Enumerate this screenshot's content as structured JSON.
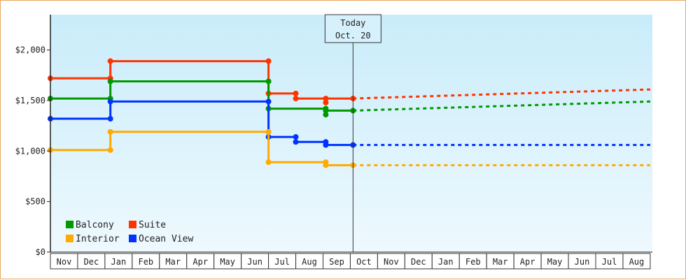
{
  "chart_data": {
    "type": "line",
    "step": true,
    "x_categories": [
      "Nov",
      "Dec",
      "Jan",
      "Feb",
      "Mar",
      "Apr",
      "May",
      "Jun",
      "Jul",
      "Aug",
      "Sep",
      "Oct",
      "Nov",
      "Dec",
      "Jan",
      "Feb",
      "Mar",
      "Apr",
      "May",
      "Jun",
      "Jul",
      "Aug"
    ],
    "y_ticks": [
      "$0",
      "$500",
      "$1,000",
      "$1,500",
      "$2,000"
    ],
    "y_tick_values": [
      0,
      500,
      1000,
      1500,
      2000
    ],
    "ylim": [
      0,
      2350
    ],
    "grid": false,
    "legend_position": "bottom-left",
    "today": {
      "line1": "Today",
      "line2": "Oct. 20",
      "month_index": 11.1
    },
    "series": [
      {
        "name": "Suite",
        "color": "#ff3300",
        "points": [
          {
            "month_index": 0,
            "value": 1720
          },
          {
            "month_index": 2.2,
            "value": 1720
          },
          {
            "month_index": 2.2,
            "value": 1890
          },
          {
            "month_index": 8,
            "value": 1890
          },
          {
            "month_index": 8,
            "value": 1570
          },
          {
            "month_index": 9,
            "value": 1570
          },
          {
            "month_index": 9,
            "value": 1520
          },
          {
            "month_index": 10.1,
            "value": 1520
          },
          {
            "month_index": 10.1,
            "value": 1480
          },
          {
            "month_index": 10.1,
            "value": 1520
          },
          {
            "month_index": 11.1,
            "value": 1520
          }
        ],
        "forecast": [
          {
            "month_index": 11.1,
            "value": 1520
          },
          {
            "month_index": 22,
            "value": 1610
          }
        ]
      },
      {
        "name": "Balcony",
        "color": "#009900",
        "points": [
          {
            "month_index": 0,
            "value": 1520
          },
          {
            "month_index": 2.2,
            "value": 1520
          },
          {
            "month_index": 2.2,
            "value": 1690
          },
          {
            "month_index": 8,
            "value": 1690
          },
          {
            "month_index": 8,
            "value": 1420
          },
          {
            "month_index": 10.1,
            "value": 1420
          },
          {
            "month_index": 10.1,
            "value": 1360
          },
          {
            "month_index": 10.1,
            "value": 1400
          },
          {
            "month_index": 11.1,
            "value": 1400
          }
        ],
        "forecast": [
          {
            "month_index": 11.1,
            "value": 1400
          },
          {
            "month_index": 22,
            "value": 1490
          }
        ]
      },
      {
        "name": "Ocean View",
        "color": "#0033ff",
        "points": [
          {
            "month_index": 0,
            "value": 1320
          },
          {
            "month_index": 2.2,
            "value": 1320
          },
          {
            "month_index": 2.2,
            "value": 1490
          },
          {
            "month_index": 8,
            "value": 1490
          },
          {
            "month_index": 8,
            "value": 1140
          },
          {
            "month_index": 9,
            "value": 1140
          },
          {
            "month_index": 9,
            "value": 1090
          },
          {
            "month_index": 10.1,
            "value": 1090
          },
          {
            "month_index": 10.1,
            "value": 1060
          },
          {
            "month_index": 11.1,
            "value": 1060
          }
        ],
        "forecast": [
          {
            "month_index": 11.1,
            "value": 1060
          },
          {
            "month_index": 22,
            "value": 1060
          }
        ]
      },
      {
        "name": "Interior",
        "color": "#ffaa00",
        "points": [
          {
            "month_index": 0,
            "value": 1010
          },
          {
            "month_index": 2.2,
            "value": 1010
          },
          {
            "month_index": 2.2,
            "value": 1190
          },
          {
            "month_index": 8,
            "value": 1190
          },
          {
            "month_index": 8,
            "value": 890
          },
          {
            "month_index": 10.1,
            "value": 890
          },
          {
            "month_index": 10.1,
            "value": 860
          },
          {
            "month_index": 11.1,
            "value": 860
          }
        ],
        "forecast": [
          {
            "month_index": 11.1,
            "value": 860
          },
          {
            "month_index": 22,
            "value": 860
          }
        ]
      }
    ],
    "legend": [
      {
        "label": "Balcony",
        "color": "#009900"
      },
      {
        "label": "Suite",
        "color": "#ff3300"
      },
      {
        "label": "Interior",
        "color": "#ffaa00"
      },
      {
        "label": "Ocean View",
        "color": "#0033ff"
      }
    ]
  }
}
